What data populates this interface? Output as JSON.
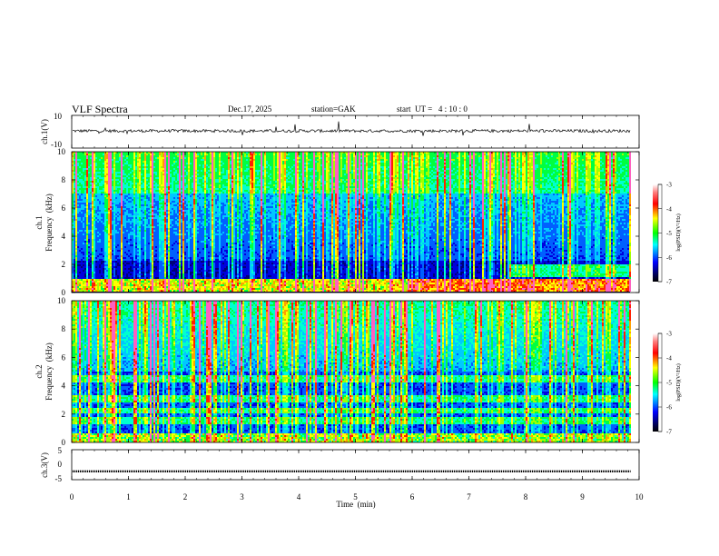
{
  "header": {
    "title": "VLF Spectra",
    "date": "Dec.17, 2025",
    "station": "station=GAK",
    "start": "start  UT =   4 : 10 : 0"
  },
  "colors": {
    "waveform": "#000000",
    "colormap": [
      "#ffffff",
      "#ff0000",
      "#ffff00",
      "#00ff00",
      "#00ffff",
      "#0000ff",
      "#000050",
      "#000000"
    ]
  },
  "chart_data": [
    {
      "type": "line",
      "panel": "ch1-waveform",
      "ylabel": "ch.1(V)",
      "ylim": [
        -10,
        10
      ],
      "yticks": [
        "10",
        "-10"
      ],
      "x_range_min": [
        0,
        9.85
      ],
      "approx_level": 0.5
    },
    {
      "type": "heatmap",
      "panel": "ch1-spectrogram",
      "ylabel": "ch.1\nFrequency (kHz)",
      "ylabel_line1": "ch.1",
      "ylabel_line2": "Frequency  (kHz)",
      "ylim": [
        0,
        10
      ],
      "yticks": [
        "0",
        "2",
        "4",
        "6",
        "8",
        "10"
      ],
      "colorbar": {
        "label": "log(PSD)(V²/Hz)",
        "range": [
          -7,
          -3
        ],
        "ticks": [
          "-3",
          "-4",
          "-5",
          "-6",
          "-7"
        ]
      },
      "features": "broadband impulsive emissions (sferics) up to 10 kHz; strong band below 1 kHz; enhanced 1-2 kHz band after ~7.8 min"
    },
    {
      "type": "heatmap",
      "panel": "ch2-spectrogram",
      "ylabel": "ch.2\nFrequency (kHz)",
      "ylabel_line1": "ch.2",
      "ylabel_line2": "Frequency  (kHz)",
      "ylim": [
        0,
        10
      ],
      "yticks": [
        "0",
        "2",
        "4",
        "6",
        "8",
        "10"
      ],
      "colorbar": {
        "label": "log(PSD)(V²/Hz)",
        "range": [
          -7,
          -3
        ],
        "ticks": [
          "-3",
          "-4",
          "-5",
          "-6",
          "-7"
        ]
      },
      "features": "intense broadband sferics; horizontal cyan bands at ~1.5, 2, 3 and 4.5 kHz"
    },
    {
      "type": "line",
      "panel": "ch3-waveform",
      "ylabel": "ch.3(V)",
      "ylim": [
        -5,
        5
      ],
      "yticks": [
        "5",
        "0",
        "-5"
      ],
      "approx_level": -2.2,
      "xlabel": "Time  (min)",
      "xlim": [
        0,
        10
      ],
      "xticks": [
        "0",
        "1",
        "2",
        "3",
        "4",
        "5",
        "6",
        "7",
        "8",
        "9",
        "10"
      ]
    }
  ]
}
